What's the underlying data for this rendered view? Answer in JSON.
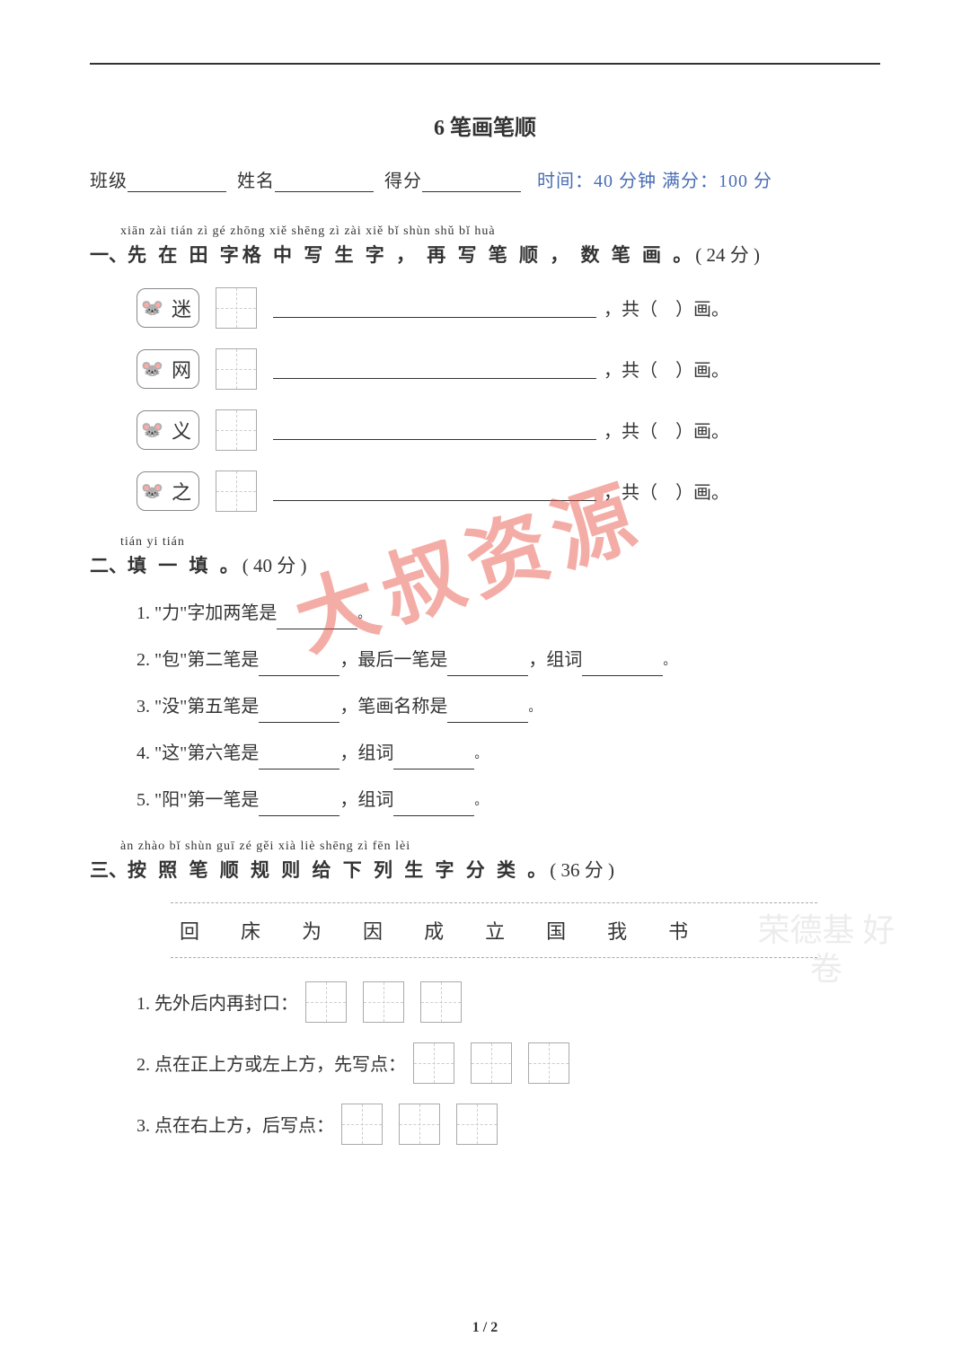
{
  "title": "6  笔画笔顺",
  "info": {
    "class_label": "班级",
    "name_label": "姓名",
    "score_label": "得分",
    "meta": "时间：40 分钟 满分：100 分"
  },
  "section1": {
    "pinyin": "xiān zài tián zì  gé  zhōng xiě shēng zì      zài xiě bǐ shùn      shǔ bǐ huà",
    "heading_prefix": "一、",
    "heading_cn": "先 在 田 字格  中  写  生  字 ， 再 写 笔 顺 ， 数 笔 画 。",
    "score": "( 24 分 )",
    "chars": [
      "迷",
      "网",
      "义",
      "之"
    ],
    "tail_pre": "，共（",
    "tail_post": "）画。"
  },
  "section2": {
    "pinyin": "tián yi tián",
    "heading_prefix": "二、",
    "heading_cn": "填 一 填 。",
    "score": "( 40 分 )",
    "items": [
      {
        "n": "1.",
        "parts": [
          "\"力\"字加两笔是",
          "。"
        ]
      },
      {
        "n": "2.",
        "parts": [
          "\"包\"第二笔是",
          "，最后一笔是",
          "，组词",
          "。"
        ]
      },
      {
        "n": "3.",
        "parts": [
          "\"没\"第五笔是",
          "，笔画名称是",
          "。"
        ]
      },
      {
        "n": "4.",
        "parts": [
          "\"这\"第六笔是",
          "，组词",
          "。"
        ]
      },
      {
        "n": "5.",
        "parts": [
          "\"阳\"第一笔是",
          "，组词",
          "。"
        ]
      }
    ]
  },
  "section3": {
    "pinyin": "àn  zhào  bǐ  shùn  guī  zé  gěi  xià  liè  shēng  zì  fēn  lèi",
    "heading_prefix": "三、",
    "heading_cn": "按 照 笔 顺 规 则 给 下 列  生  字 分 类 。",
    "score": "( 36 分 )",
    "bank": [
      "回",
      "床",
      "为",
      "因",
      "成",
      "立",
      "国",
      "我",
      "书"
    ],
    "rows": [
      {
        "n": "1.",
        "label": "先外后内再封口：",
        "boxes": 3
      },
      {
        "n": "2.",
        "label": "点在正上方或左上方，先写点：",
        "boxes": 3
      },
      {
        "n": "3.",
        "label": "点在右上方，后写点：",
        "boxes": 3
      }
    ]
  },
  "watermark": "大叔资源",
  "corner_wm": "荣德基\n好卷",
  "page": "1 / 2"
}
